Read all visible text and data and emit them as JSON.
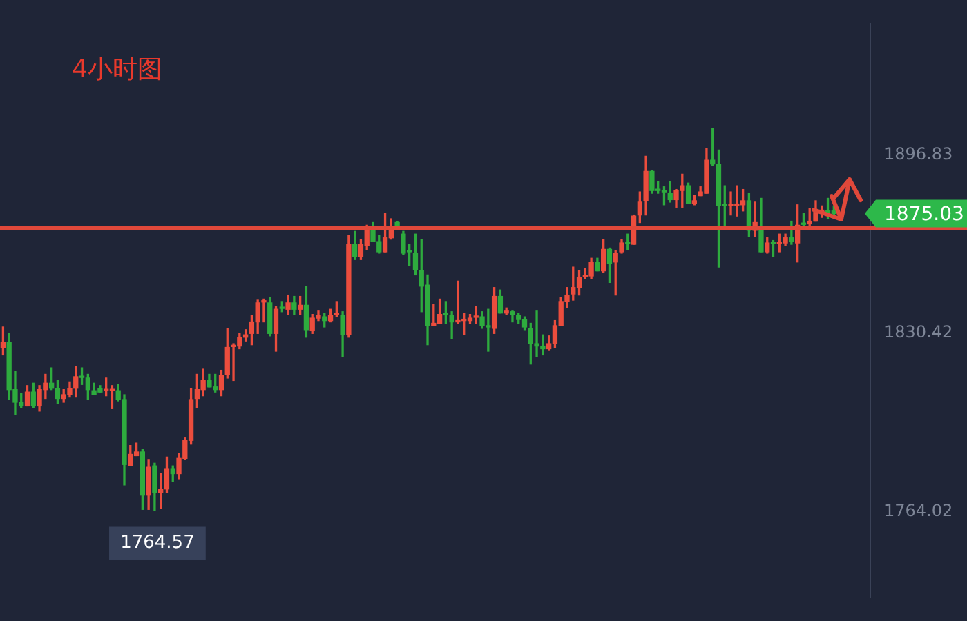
{
  "chart_data": {
    "type": "candlestick",
    "title": "4小时图",
    "categories": [
      null,
      null,
      null,
      null,
      null,
      null,
      null,
      null,
      null,
      null,
      null,
      null,
      null,
      null,
      null,
      null,
      null,
      null,
      null,
      null,
      null,
      null,
      null,
      null,
      null,
      null,
      null,
      null,
      null,
      null,
      null,
      null,
      null,
      null,
      null,
      null,
      null,
      null,
      null,
      null,
      null,
      null,
      null,
      null,
      null,
      null,
      null,
      null,
      null,
      null,
      null,
      null,
      null,
      null,
      null,
      null,
      null,
      null,
      null,
      null,
      null,
      null,
      null,
      null,
      null,
      null,
      null,
      null,
      null,
      null,
      null,
      null,
      null,
      null,
      null,
      null,
      null,
      null,
      null,
      null,
      null,
      null,
      null,
      null,
      null,
      null,
      null,
      null,
      null,
      null,
      null,
      null,
      null,
      null,
      null,
      null,
      null,
      null,
      null,
      null,
      null,
      null,
      null,
      null,
      null,
      null,
      null,
      null,
      null,
      null,
      null,
      null,
      null,
      null,
      null,
      null,
      null,
      null,
      null,
      null,
      null,
      null,
      null,
      null,
      null,
      null,
      null,
      null,
      null,
      null,
      null,
      null,
      null,
      null,
      null,
      null,
      null,
      null
    ],
    "ohlc": [
      [
        1825.2,
        1832.8,
        1822.4,
        1827.1
      ],
      [
        1827.1,
        1830.4,
        1805.8,
        1809.5
      ],
      [
        1809.5,
        1816.2,
        1800.1,
        1804.8
      ],
      [
        1804.8,
        1808.1,
        1802.9,
        1803.4
      ],
      [
        1803.4,
        1811.0,
        1803.4,
        1808.6
      ],
      [
        1808.6,
        1811.9,
        1802.9,
        1803.4
      ],
      [
        1803.4,
        1811.0,
        1801.5,
        1809.5
      ],
      [
        1809.5,
        1815.2,
        1806.2,
        1811.9
      ],
      [
        1811.9,
        1817.6,
        1809.5,
        1810.0
      ],
      [
        1810.0,
        1812.9,
        1804.3,
        1806.2
      ],
      [
        1806.2,
        1809.5,
        1804.8,
        1807.6
      ],
      [
        1807.6,
        1812.4,
        1806.7,
        1810.0
      ],
      [
        1810.0,
        1818.1,
        1806.7,
        1814.3
      ],
      [
        1814.3,
        1817.6,
        1811.4,
        1814.0
      ],
      [
        1813.8,
        1815.2,
        1805.8,
        1809.5
      ],
      [
        1809.1,
        1811.9,
        1807.6,
        1807.6
      ],
      [
        1810.0,
        1811.0,
        1808.6,
        1808.6
      ],
      [
        1809.1,
        1813.8,
        1807.2,
        1809.3
      ],
      [
        1809.1,
        1811.0,
        1802.4,
        1809.3
      ],
      [
        1809.1,
        1811.4,
        1805.3,
        1805.8
      ],
      [
        1805.8,
        1807.6,
        1774.0,
        1781.6
      ],
      [
        1781.1,
        1788.7,
        1781.1,
        1785.4
      ],
      [
        1784.9,
        1789.6,
        1784.9,
        1786.3
      ],
      [
        1786.3,
        1787.3,
        1764.9,
        1770.2
      ],
      [
        1770.2,
        1783.5,
        1764.9,
        1780.6
      ],
      [
        1781.1,
        1782.1,
        1764.57,
        1771.1
      ],
      [
        1771.1,
        1778.2,
        1765.4,
        1772.5
      ],
      [
        1772.5,
        1784.4,
        1771.1,
        1780.1
      ],
      [
        1780.1,
        1781.1,
        1775.4,
        1778.2
      ],
      [
        1778.2,
        1785.8,
        1776.3,
        1783.9
      ],
      [
        1783.9,
        1791.5,
        1783.5,
        1790.6
      ],
      [
        1790.6,
        1810.0,
        1789.2,
        1805.8
      ],
      [
        1806.2,
        1815.2,
        1802.9,
        1809.5
      ],
      [
        1809.5,
        1817.1,
        1807.2,
        1812.9
      ],
      [
        1812.9,
        1815.2,
        1810.5,
        1810.5
      ],
      [
        1810.5,
        1815.2,
        1808.6,
        1809.5
      ],
      [
        1809.5,
        1816.7,
        1807.2,
        1814.8
      ],
      [
        1815.2,
        1832.3,
        1813.8,
        1825.2
      ],
      [
        1825.5,
        1826.6,
        1812.9,
        1825.7
      ],
      [
        1825.7,
        1830.4,
        1824.7,
        1829.0
      ],
      [
        1829.0,
        1831.8,
        1827.6,
        1829.9
      ],
      [
        1830.4,
        1837.1,
        1826.2,
        1834.7
      ],
      [
        1834.7,
        1842.8,
        1830.4,
        1841.8
      ],
      [
        1842.1,
        1843.2,
        1834.7,
        1842.3
      ],
      [
        1841.8,
        1843.7,
        1829.5,
        1830.4
      ],
      [
        1830.4,
        1840.4,
        1823.8,
        1839.4
      ],
      [
        1839.9,
        1842.3,
        1838.5,
        1839.7
      ],
      [
        1839.4,
        1844.7,
        1837.5,
        1841.8
      ],
      [
        1841.8,
        1844.2,
        1837.5,
        1839.4
      ],
      [
        1839.4,
        1844.2,
        1837.5,
        1840.9
      ],
      [
        1840.9,
        1848.0,
        1829.0,
        1831.8
      ],
      [
        1831.4,
        1837.5,
        1830.4,
        1836.1
      ],
      [
        1836.1,
        1839.0,
        1835.2,
        1837.1
      ],
      [
        1836.6,
        1838.0,
        1832.8,
        1835.2
      ],
      [
        1835.2,
        1839.4,
        1834.7,
        1837.1
      ],
      [
        1837.5,
        1842.3,
        1836.6,
        1837.7
      ],
      [
        1837.1,
        1838.5,
        1821.9,
        1829.9
      ],
      [
        1829.9,
        1866.9,
        1829.0,
        1863.6
      ],
      [
        1863.6,
        1868.4,
        1857.9,
        1858.9
      ],
      [
        1858.9,
        1865.5,
        1857.9,
        1863.6
      ],
      [
        1863.2,
        1870.7,
        1861.7,
        1869.3
      ],
      [
        1868.8,
        1871.7,
        1864.6,
        1864.6
      ],
      [
        1864.6,
        1866.9,
        1860.3,
        1860.8
      ],
      [
        1860.8,
        1875.0,
        1860.8,
        1866.0
      ],
      [
        1866.0,
        1873.1,
        1865.5,
        1868.8
      ],
      [
        1871.7,
        1872.0,
        1869.3,
        1869.3
      ],
      [
        1867.4,
        1868.4,
        1859.8,
        1860.3
      ],
      [
        1861.0,
        1863.6,
        1855.6,
        1860.8
      ],
      [
        1860.3,
        1867.4,
        1852.2,
        1854.1
      ],
      [
        1853.7,
        1865.5,
        1838.5,
        1848.0
      ],
      [
        1848.4,
        1852.2,
        1826.2,
        1833.3
      ],
      [
        1833.3,
        1841.3,
        1833.3,
        1834.2
      ],
      [
        1834.2,
        1843.2,
        1834.2,
        1837.5
      ],
      [
        1837.5,
        1842.3,
        1834.2,
        1837.3
      ],
      [
        1837.1,
        1838.5,
        1828.5,
        1834.7
      ],
      [
        1834.7,
        1849.9,
        1834.2,
        1834.9
      ],
      [
        1835.2,
        1838.0,
        1829.9,
        1835.4
      ],
      [
        1835.2,
        1837.5,
        1834.2,
        1836.1
      ],
      [
        1836.4,
        1840.4,
        1834.2,
        1836.6
      ],
      [
        1836.6,
        1838.5,
        1832.3,
        1833.3
      ],
      [
        1833.0,
        1839.4,
        1823.8,
        1832.8
      ],
      [
        1832.3,
        1847.5,
        1830.4,
        1844.2
      ],
      [
        1844.2,
        1846.6,
        1838.0,
        1838.0
      ],
      [
        1838.0,
        1839.9,
        1837.5,
        1839.0
      ],
      [
        1838.5,
        1839.0,
        1834.7,
        1837.5
      ],
      [
        1837.1,
        1838.0,
        1834.2,
        1835.6
      ],
      [
        1835.6,
        1836.6,
        1831.8,
        1832.8
      ],
      [
        1832.3,
        1834.2,
        1819.0,
        1826.6
      ],
      [
        1826.6,
        1839.0,
        1821.9,
        1825.7
      ],
      [
        1825.7,
        1829.9,
        1822.4,
        1824.7
      ],
      [
        1824.7,
        1829.5,
        1824.3,
        1826.6
      ],
      [
        1826.6,
        1835.2,
        1825.2,
        1833.3
      ],
      [
        1833.3,
        1843.7,
        1833.3,
        1842.3
      ],
      [
        1842.3,
        1847.5,
        1839.9,
        1844.7
      ],
      [
        1845.1,
        1855.1,
        1842.8,
        1847.5
      ],
      [
        1847.5,
        1853.7,
        1844.7,
        1851.3
      ],
      [
        1851.5,
        1854.6,
        1850.8,
        1851.8
      ],
      [
        1851.8,
        1858.4,
        1850.8,
        1857.0
      ],
      [
        1857.0,
        1858.4,
        1853.7,
        1853.7
      ],
      [
        1853.7,
        1865.5,
        1853.2,
        1861.7
      ],
      [
        1861.7,
        1862.2,
        1849.4,
        1856.5
      ],
      [
        1857.0,
        1861.3,
        1844.7,
        1860.3
      ],
      [
        1860.8,
        1865.5,
        1860.3,
        1864.1
      ],
      [
        1864.1,
        1867.4,
        1861.7,
        1863.9
      ],
      [
        1863.6,
        1874.5,
        1863.6,
        1874.1
      ],
      [
        1874.5,
        1883.1,
        1871.7,
        1879.3
      ],
      [
        1879.8,
        1896.4,
        1874.5,
        1890.7
      ],
      [
        1890.7,
        1891.1,
        1882.6,
        1883.6
      ],
      [
        1883.8,
        1886.9,
        1882.6,
        1883.6
      ],
      [
        1883.3,
        1885.0,
        1878.3,
        1883.1
      ],
      [
        1882.6,
        1886.9,
        1879.3,
        1880.2
      ],
      [
        1880.2,
        1884.0,
        1877.4,
        1883.6
      ],
      [
        1883.6,
        1889.7,
        1877.4,
        1885.4
      ],
      [
        1885.4,
        1886.4,
        1878.8,
        1878.8
      ],
      [
        1878.8,
        1881.7,
        1878.3,
        1879.8
      ],
      [
        1881.7,
        1885.0,
        1881.7,
        1883.1
      ],
      [
        1882.6,
        1899.2,
        1882.6,
        1894.9
      ],
      [
        1894.9,
        1906.8,
        1893.0,
        1893.5
      ],
      [
        1893.5,
        1898.7,
        1855.1,
        1877.9
      ],
      [
        1878.1,
        1885.4,
        1870.7,
        1877.9
      ],
      [
        1877.9,
        1883.1,
        1874.5,
        1878.1
      ],
      [
        1878.1,
        1885.4,
        1874.1,
        1878.3
      ],
      [
        1878.3,
        1884.0,
        1876.0,
        1879.8
      ],
      [
        1879.8,
        1882.6,
        1866.5,
        1868.8
      ],
      [
        1868.8,
        1879.3,
        1866.5,
        1871.7
      ],
      [
        1868.8,
        1880.7,
        1860.8,
        1860.8
      ],
      [
        1860.8,
        1866.0,
        1860.3,
        1864.1
      ],
      [
        1864.1,
        1865.0,
        1858.9,
        1863.9
      ],
      [
        1863.9,
        1867.4,
        1860.8,
        1864.1
      ],
      [
        1864.1,
        1867.4,
        1863.2,
        1866.0
      ],
      [
        1866.0,
        1872.2,
        1863.6,
        1864.6
      ],
      [
        1864.1,
        1878.3,
        1857.0,
        1870.7
      ],
      [
        1871.2,
        1875.0,
        1870.3,
        1871.0
      ],
      [
        1871.2,
        1876.9,
        1870.7,
        1872.2
      ],
      [
        1872.2,
        1879.8,
        1872.2,
        1876.0
      ],
      [
        1875.8,
        1877.9,
        1873.6,
        1876.0
      ],
      [
        1876.0,
        1880.7,
        1873.1,
        1875.5
      ],
      [
        1876.0,
        1877.9,
        1873.1,
        1875.03
      ]
    ],
    "ylim": [
      1732.2,
      1945.7
    ],
    "yticks": [
      1764.02,
      1830.42,
      1896.83
    ],
    "tick_labels": "y",
    "ref_lines": [
      {
        "axis": "y",
        "value": 1869.8,
        "color": "#e0483a"
      }
    ],
    "annotations": [
      "1875.03",
      "1764.57"
    ]
  }
}
